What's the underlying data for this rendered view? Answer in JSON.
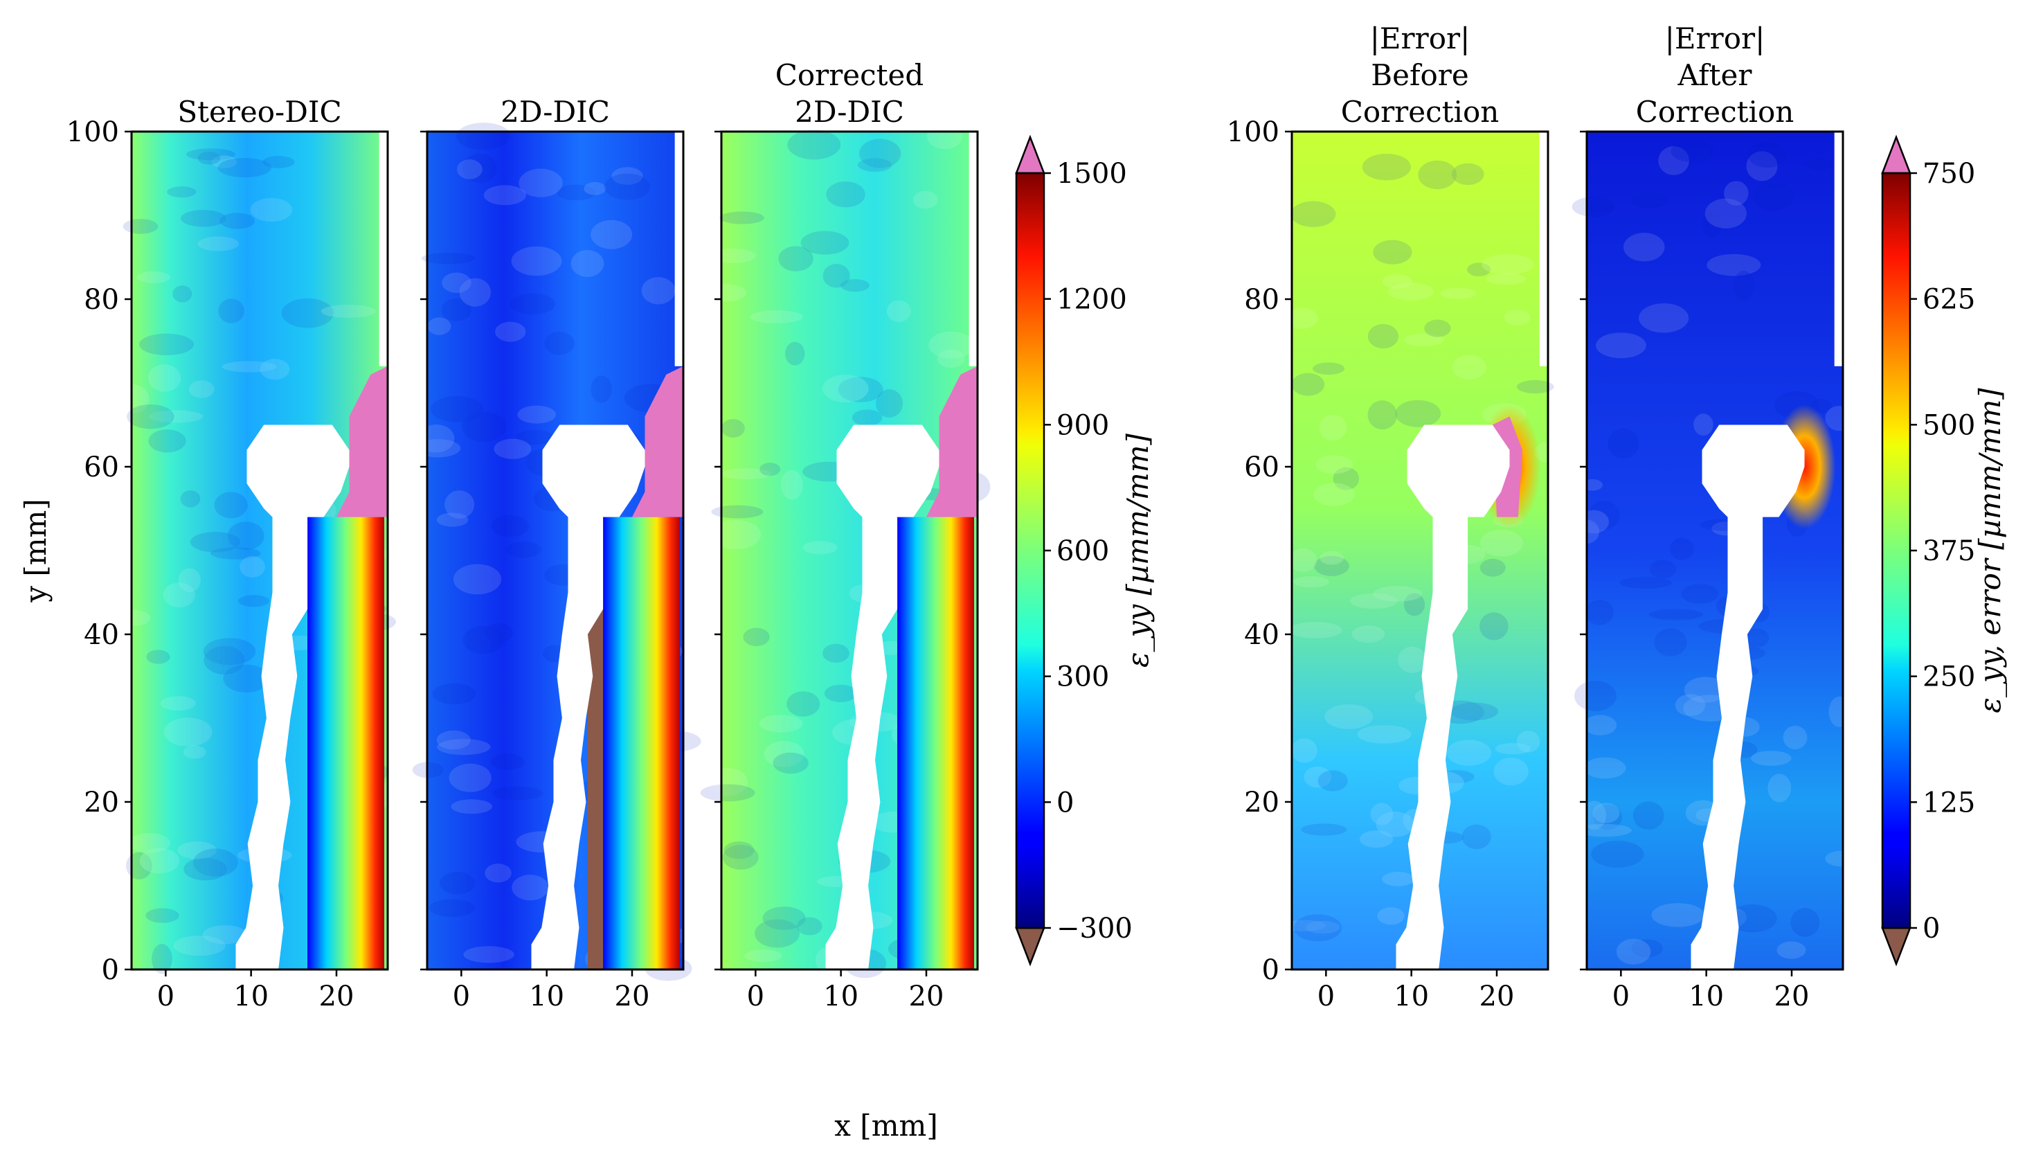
{
  "chart_data": {
    "type": "heatmap",
    "xlabel": "x [mm]",
    "ylabel": "y [mm]",
    "xlim": [
      -4,
      26
    ],
    "ylim": [
      0,
      100
    ],
    "xticks": [
      0,
      10,
      20
    ],
    "yticks": [
      0,
      20,
      40,
      60,
      80,
      100
    ],
    "specimen_outline_mm": [
      [
        13.2,
        0
      ],
      [
        13.8,
        5
      ],
      [
        13.2,
        10
      ],
      [
        13.8,
        15
      ],
      [
        14.6,
        20
      ],
      [
        14.0,
        25
      ],
      [
        14.6,
        30
      ],
      [
        15.4,
        35
      ],
      [
        14.8,
        40
      ],
      [
        16.6,
        43
      ],
      [
        16.6,
        54
      ],
      [
        18.5,
        54
      ],
      [
        20.5,
        57
      ],
      [
        21.5,
        60
      ],
      [
        21.5,
        62
      ],
      [
        19.5,
        65
      ],
      [
        11.5,
        65
      ],
      [
        9.5,
        62
      ],
      [
        9.5,
        58
      ],
      [
        11.5,
        55
      ],
      [
        12.5,
        54
      ],
      [
        12.5,
        45
      ],
      [
        11.8,
        40
      ],
      [
        11.2,
        35
      ],
      [
        11.8,
        30
      ],
      [
        10.8,
        25
      ],
      [
        10.8,
        20
      ],
      [
        9.6,
        15
      ],
      [
        10.2,
        10
      ],
      [
        9.4,
        5
      ],
      [
        8.2,
        3
      ],
      [
        8.2,
        0
      ]
    ],
    "panel_groups": [
      {
        "colorbar": {
          "label": "ε_yy [µmm/mm]",
          "min": -300,
          "max": 1500,
          "ticks": [
            -300,
            0,
            300,
            600,
            900,
            1200,
            1500
          ],
          "tick_labels": [
            "−300",
            "0",
            "300",
            "600",
            "900",
            "1200",
            "1500"
          ],
          "under_color": "#8b5a4a",
          "over_color": "#e377c2"
        },
        "panels": [
          {
            "title": [
              "Stereo-DIC"
            ],
            "show_yticks": true
          },
          {
            "title": [
              "2D-DIC"
            ],
            "show_yticks": false
          },
          {
            "title": [
              "Corrected",
              "2D-DIC"
            ],
            "show_yticks": false
          }
        ]
      },
      {
        "colorbar": {
          "label": "ε_yy, error [µmm/mm]",
          "min": 0,
          "max": 750,
          "ticks": [
            0,
            125,
            250,
            375,
            500,
            625,
            750
          ],
          "tick_labels": [
            "0",
            "125",
            "250",
            "375",
            "500",
            "625",
            "750"
          ],
          "under_color": "#8b5a4a",
          "over_color": "#e377c2"
        },
        "panels": [
          {
            "title": [
              "|Error|",
              "Before",
              "Correction"
            ],
            "show_yticks": true
          },
          {
            "title": [
              "|Error|",
              "After",
              "Correction"
            ],
            "show_yticks": false
          }
        ]
      }
    ]
  }
}
